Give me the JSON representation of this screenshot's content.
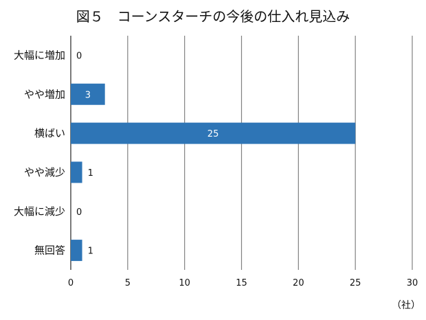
{
  "chart_data": {
    "type": "bar",
    "orientation": "horizontal",
    "title": "図５　コーンスターチの今後の仕入れ見込み",
    "categories": [
      "大幅に増加",
      "やや増加",
      "横ばい",
      "やや減少",
      "大幅に減少",
      "無回答"
    ],
    "values": [
      0,
      3,
      25,
      1,
      0,
      1
    ],
    "xlim": [
      0,
      30
    ],
    "xticks": [
      0,
      5,
      10,
      15,
      20,
      25,
      30
    ],
    "unit_label": "（社）",
    "grid": true,
    "bar_color": "#2E75B6",
    "grid_color": "#808080",
    "inside_label_color": "#ffffff",
    "outside_label_color": "#111111"
  }
}
